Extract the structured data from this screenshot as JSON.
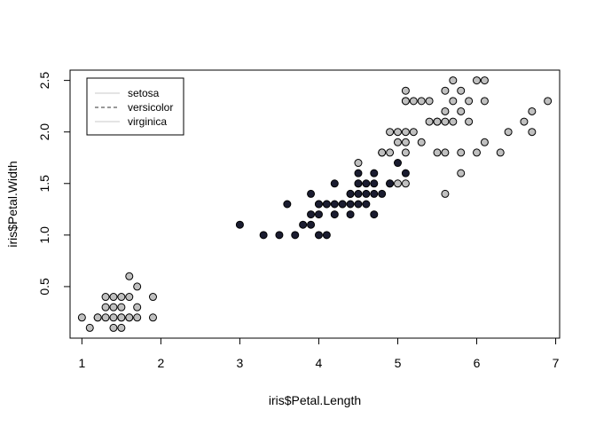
{
  "chart_data": {
    "type": "scatter",
    "xlabel": "iris$Petal.Length",
    "ylabel": "iris$Petal.Width",
    "xlim": [
      0.85,
      7.05
    ],
    "ylim": [
      0.0,
      2.6
    ],
    "x_ticks": [
      1,
      2,
      3,
      4,
      5,
      6,
      7
    ],
    "y_ticks": [
      0.5,
      1.0,
      1.5,
      2.0,
      2.5
    ],
    "y_tick_labels": [
      "0.5",
      "1.0",
      "1.5",
      "2.0",
      "2.5"
    ],
    "grid": false,
    "legend": {
      "position": "top-left",
      "entries": [
        {
          "label": "setosa",
          "line_style": "solid",
          "color": "#c8c8c8"
        },
        {
          "label": "versicolor",
          "line_style": "dashed",
          "color": "#333333"
        },
        {
          "label": "virginica",
          "line_style": "solid",
          "color": "#c8c8c8"
        }
      ]
    },
    "series": [
      {
        "color": "#c0c0c0",
        "points": [
          [
            1.0,
            0.2
          ],
          [
            1.1,
            0.1
          ],
          [
            1.2,
            0.2
          ],
          [
            1.3,
            0.2
          ],
          [
            1.4,
            0.2
          ],
          [
            1.5,
            0.2
          ],
          [
            1.6,
            0.2
          ],
          [
            1.7,
            0.2
          ],
          [
            1.9,
            0.2
          ],
          [
            1.3,
            0.3
          ],
          [
            1.4,
            0.3
          ],
          [
            1.5,
            0.3
          ],
          [
            1.7,
            0.3
          ],
          [
            1.3,
            0.4
          ],
          [
            1.5,
            0.4
          ],
          [
            1.6,
            0.4
          ],
          [
            1.9,
            0.4
          ],
          [
            1.4,
            0.1
          ],
          [
            1.5,
            0.1
          ],
          [
            1.6,
            0.6
          ],
          [
            1.7,
            0.5
          ],
          [
            1.4,
            0.4
          ],
          [
            1.2,
            0.2
          ],
          [
            1.6,
            0.2
          ],
          [
            1.5,
            0.2
          ]
        ]
      },
      {
        "color": "#1a1c30",
        "points": [
          [
            3.0,
            1.1
          ],
          [
            3.3,
            1.0
          ],
          [
            3.5,
            1.0
          ],
          [
            3.6,
            1.3
          ],
          [
            3.7,
            1.0
          ],
          [
            3.8,
            1.1
          ],
          [
            3.9,
            1.1
          ],
          [
            3.9,
            1.2
          ],
          [
            3.9,
            1.4
          ],
          [
            4.0,
            1.0
          ],
          [
            4.0,
            1.2
          ],
          [
            4.0,
            1.3
          ],
          [
            4.1,
            1.0
          ],
          [
            4.1,
            1.3
          ],
          [
            4.2,
            1.2
          ],
          [
            4.2,
            1.3
          ],
          [
            4.2,
            1.5
          ],
          [
            4.3,
            1.3
          ],
          [
            4.4,
            1.2
          ],
          [
            4.4,
            1.3
          ],
          [
            4.4,
            1.4
          ],
          [
            4.5,
            1.3
          ],
          [
            4.5,
            1.5
          ],
          [
            4.5,
            1.6
          ],
          [
            4.6,
            1.3
          ],
          [
            4.6,
            1.4
          ],
          [
            4.6,
            1.5
          ],
          [
            4.7,
            1.2
          ],
          [
            4.7,
            1.4
          ],
          [
            4.7,
            1.5
          ],
          [
            4.7,
            1.6
          ],
          [
            4.8,
            1.4
          ],
          [
            4.8,
            1.8
          ],
          [
            4.9,
            1.5
          ],
          [
            5.0,
            1.7
          ],
          [
            5.1,
            1.6
          ],
          [
            4.0,
            1.3
          ],
          [
            4.5,
            1.5
          ],
          [
            4.1,
            1.3
          ],
          [
            4.3,
            1.3
          ],
          [
            4.5,
            1.4
          ],
          [
            4.4,
            1.4
          ],
          [
            4.9,
            1.5
          ]
        ]
      },
      {
        "color": "#c0c0c0",
        "points": [
          [
            4.5,
            1.7
          ],
          [
            4.8,
            1.8
          ],
          [
            4.9,
            1.8
          ],
          [
            5.0,
            1.5
          ],
          [
            5.1,
            1.5
          ],
          [
            5.0,
            1.9
          ],
          [
            5.0,
            2.0
          ],
          [
            4.9,
            2.0
          ],
          [
            5.1,
            1.8
          ],
          [
            5.1,
            1.9
          ],
          [
            5.1,
            2.0
          ],
          [
            5.1,
            2.3
          ],
          [
            5.1,
            2.4
          ],
          [
            5.2,
            2.0
          ],
          [
            5.2,
            2.3
          ],
          [
            5.3,
            1.9
          ],
          [
            5.3,
            2.3
          ],
          [
            5.4,
            2.1
          ],
          [
            5.4,
            2.3
          ],
          [
            5.5,
            1.8
          ],
          [
            5.5,
            2.1
          ],
          [
            5.6,
            1.4
          ],
          [
            5.6,
            1.8
          ],
          [
            5.6,
            2.1
          ],
          [
            5.6,
            2.2
          ],
          [
            5.6,
            2.4
          ],
          [
            5.7,
            2.1
          ],
          [
            5.7,
            2.3
          ],
          [
            5.7,
            2.5
          ],
          [
            5.8,
            1.6
          ],
          [
            5.8,
            1.8
          ],
          [
            5.8,
            2.2
          ],
          [
            5.9,
            2.1
          ],
          [
            5.9,
            2.3
          ],
          [
            6.0,
            1.8
          ],
          [
            6.0,
            2.5
          ],
          [
            6.1,
            1.9
          ],
          [
            6.1,
            2.3
          ],
          [
            6.1,
            2.5
          ],
          [
            6.3,
            1.8
          ],
          [
            6.4,
            2.0
          ],
          [
            6.6,
            2.1
          ],
          [
            6.7,
            2.0
          ],
          [
            6.7,
            2.2
          ],
          [
            6.9,
            2.3
          ],
          [
            5.5,
            2.1
          ],
          [
            5.8,
            2.4
          ],
          [
            5.1,
            2.3
          ]
        ]
      }
    ]
  }
}
